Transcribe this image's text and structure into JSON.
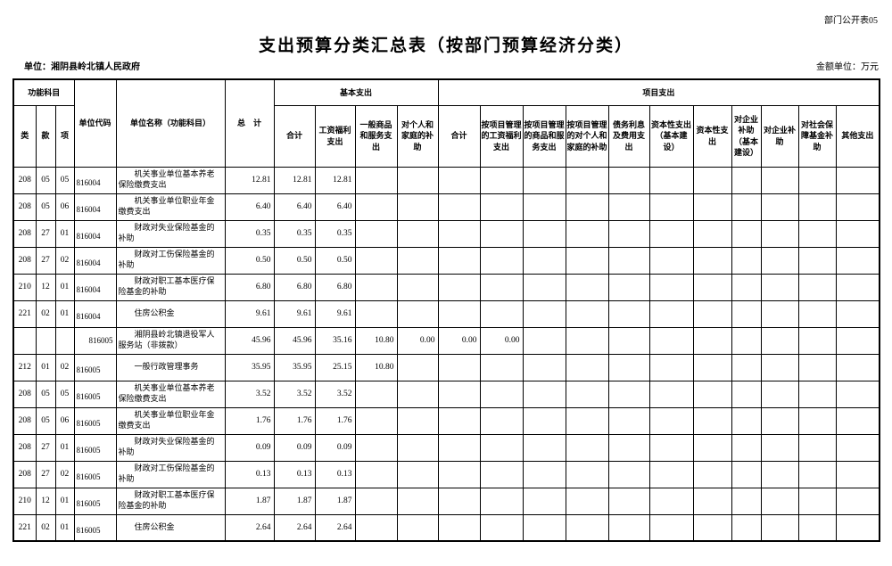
{
  "page": {
    "doc_code": "部门公开表05",
    "title": "支出预算分类汇总表（按部门预算经济分类）",
    "unit_label": "单位：湘阴县岭北镇人民政府",
    "amount_unit_label": "金额单位：万元"
  },
  "table": {
    "header": {
      "func_group": "功能科目",
      "cls": "类",
      "section": "款",
      "item": "项",
      "unit_code": "单位代码",
      "unit_name": "单位名称（功能科目）",
      "total": "总　计",
      "basic_group": "基本支出",
      "project_group": "项目支出",
      "basic_cols": [
        "合计",
        "工资福利支出",
        "一般商品和服务支出",
        "对个人和家庭的补助"
      ],
      "project_cols": [
        "合计",
        "按项目管理的工资福利支出",
        "按项目管理的商品和服务支出",
        "按项目管理的对个人和家庭的补助",
        "债务利息及费用支出",
        "资本性支出（基本建设）",
        "资本性支出",
        "对企业补助（基本建设）",
        "对企业补助",
        "对社会保障基金补助",
        "其他支出"
      ]
    },
    "rows": [
      {
        "cls": "208",
        "kuan": "05",
        "xiang": "05",
        "code": "816004",
        "name": "机关事业单位基本养老保险缴费支出",
        "summary": false,
        "values": [
          "12.81",
          "12.81",
          "12.81"
        ]
      },
      {
        "cls": "208",
        "kuan": "05",
        "xiang": "06",
        "code": "816004",
        "name": "机关事业单位职业年金缴费支出",
        "summary": false,
        "values": [
          "6.40",
          "6.40",
          "6.40"
        ]
      },
      {
        "cls": "208",
        "kuan": "27",
        "xiang": "01",
        "code": "816004",
        "name": "财政对失业保险基金的补助",
        "summary": false,
        "values": [
          "0.35",
          "0.35",
          "0.35"
        ]
      },
      {
        "cls": "208",
        "kuan": "27",
        "xiang": "02",
        "code": "816004",
        "name": "财政对工伤保险基金的补助",
        "summary": false,
        "values": [
          "0.50",
          "0.50",
          "0.50"
        ]
      },
      {
        "cls": "210",
        "kuan": "12",
        "xiang": "01",
        "code": "816004",
        "name": "财政对职工基本医疗保险基金的补助",
        "summary": false,
        "values": [
          "6.80",
          "6.80",
          "6.80"
        ]
      },
      {
        "cls": "221",
        "kuan": "02",
        "xiang": "01",
        "code": "816004",
        "name": "住房公积金",
        "summary": false,
        "values": [
          "9.61",
          "9.61",
          "9.61"
        ]
      },
      {
        "cls": "",
        "kuan": "",
        "xiang": "",
        "code": "816005",
        "name": "湘阴县岭北镇退役军人服务站（非拨款）",
        "summary": true,
        "values": [
          "45.96",
          "45.96",
          "35.16",
          "10.80",
          "0.00",
          "0.00",
          "0.00"
        ]
      },
      {
        "cls": "212",
        "kuan": "01",
        "xiang": "02",
        "code": "816005",
        "name": "一般行政管理事务",
        "summary": false,
        "values": [
          "35.95",
          "35.95",
          "25.15",
          "10.80"
        ]
      },
      {
        "cls": "208",
        "kuan": "05",
        "xiang": "05",
        "code": "816005",
        "name": "机关事业单位基本养老保险缴费支出",
        "summary": false,
        "values": [
          "3.52",
          "3.52",
          "3.52"
        ]
      },
      {
        "cls": "208",
        "kuan": "05",
        "xiang": "06",
        "code": "816005",
        "name": "机关事业单位职业年金缴费支出",
        "summary": false,
        "values": [
          "1.76",
          "1.76",
          "1.76"
        ]
      },
      {
        "cls": "208",
        "kuan": "27",
        "xiang": "01",
        "code": "816005",
        "name": "财政对失业保险基金的补助",
        "summary": false,
        "values": [
          "0.09",
          "0.09",
          "0.09"
        ]
      },
      {
        "cls": "208",
        "kuan": "27",
        "xiang": "02",
        "code": "816005",
        "name": "财政对工伤保险基金的补助",
        "summary": false,
        "values": [
          "0.13",
          "0.13",
          "0.13"
        ]
      },
      {
        "cls": "210",
        "kuan": "12",
        "xiang": "01",
        "code": "816005",
        "name": "财政对职工基本医疗保险基金的补助",
        "summary": false,
        "values": [
          "1.87",
          "1.87",
          "1.87"
        ]
      },
      {
        "cls": "221",
        "kuan": "02",
        "xiang": "01",
        "code": "816005",
        "name": "住房公积金",
        "summary": false,
        "values": [
          "2.64",
          "2.64",
          "2.64"
        ]
      }
    ]
  }
}
